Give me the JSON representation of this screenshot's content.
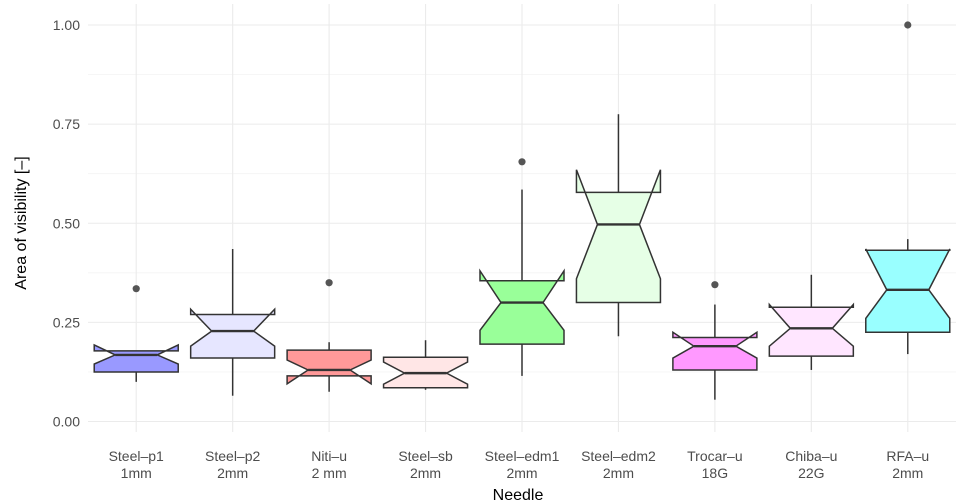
{
  "chart_data": {
    "type": "boxplot",
    "notched": true,
    "xlabel": "Needle",
    "ylabel": "Area of visibility [–]",
    "ylim": [
      -0.02,
      1.03
    ],
    "yticks": [
      0,
      0.25,
      0.5,
      0.75,
      1
    ],
    "ytick_labels": [
      "0.00",
      "0.25",
      "0.50",
      "0.75",
      "1.00"
    ],
    "grid": true,
    "categories": [
      {
        "line1": "Steel–p1",
        "line2": "1mm"
      },
      {
        "line1": "Steel–p2",
        "line2": "2mm"
      },
      {
        "line1": "Niti–u",
        "line2": "2 mm"
      },
      {
        "line1": "Steel–sb",
        "line2": "2mm"
      },
      {
        "line1": "Steel–edm1",
        "line2": "2mm"
      },
      {
        "line1": "Steel–edm2",
        "line2": "2mm"
      },
      {
        "line1": "Trocar–u",
        "line2": "18G"
      },
      {
        "line1": "Chiba–u",
        "line2": "22G"
      },
      {
        "line1": "RFA–u",
        "line2": "2mm"
      }
    ],
    "boxes": [
      {
        "color": "#9999ff",
        "min": 0.1,
        "q1": 0.125,
        "median": 0.168,
        "q3": 0.178,
        "max": 0.178,
        "notch_low": 0.145,
        "notch_high": 0.193,
        "outliers": [
          0.335
        ]
      },
      {
        "color": "#e6e6ff",
        "min": 0.065,
        "q1": 0.16,
        "median": 0.228,
        "q3": 0.27,
        "max": 0.435,
        "notch_low": 0.19,
        "notch_high": 0.283,
        "outliers": []
      },
      {
        "color": "#ff9999",
        "min": 0.075,
        "q1": 0.115,
        "median": 0.13,
        "q3": 0.18,
        "max": 0.2,
        "notch_low": 0.095,
        "notch_high": 0.155,
        "outliers": [
          0.35
        ]
      },
      {
        "color": "#ffe6e6",
        "min": 0.08,
        "q1": 0.085,
        "median": 0.122,
        "q3": 0.162,
        "max": 0.205,
        "notch_low": 0.094,
        "notch_high": 0.15,
        "outliers": []
      },
      {
        "color": "#99ff99",
        "min": 0.115,
        "q1": 0.195,
        "median": 0.3,
        "q3": 0.355,
        "max": 0.585,
        "notch_low": 0.23,
        "notch_high": 0.38,
        "outliers": [
          0.655
        ]
      },
      {
        "color": "#e6ffe6",
        "min": 0.215,
        "q1": 0.3,
        "median": 0.497,
        "q3": 0.578,
        "max": 0.775,
        "notch_low": 0.36,
        "notch_high": 0.635,
        "outliers": []
      },
      {
        "color": "#ff99ff",
        "min": 0.055,
        "q1": 0.13,
        "median": 0.19,
        "q3": 0.212,
        "max": 0.295,
        "notch_low": 0.16,
        "notch_high": 0.225,
        "outliers": [
          0.345
        ]
      },
      {
        "color": "#ffe6ff",
        "min": 0.13,
        "q1": 0.165,
        "median": 0.235,
        "q3": 0.288,
        "max": 0.37,
        "notch_low": 0.19,
        "notch_high": 0.295,
        "outliers": []
      },
      {
        "color": "#99ffff",
        "min": 0.17,
        "q1": 0.225,
        "median": 0.332,
        "q3": 0.432,
        "max": 0.46,
        "notch_low": 0.26,
        "notch_high": 0.435,
        "outliers": [
          1.0
        ]
      }
    ]
  }
}
